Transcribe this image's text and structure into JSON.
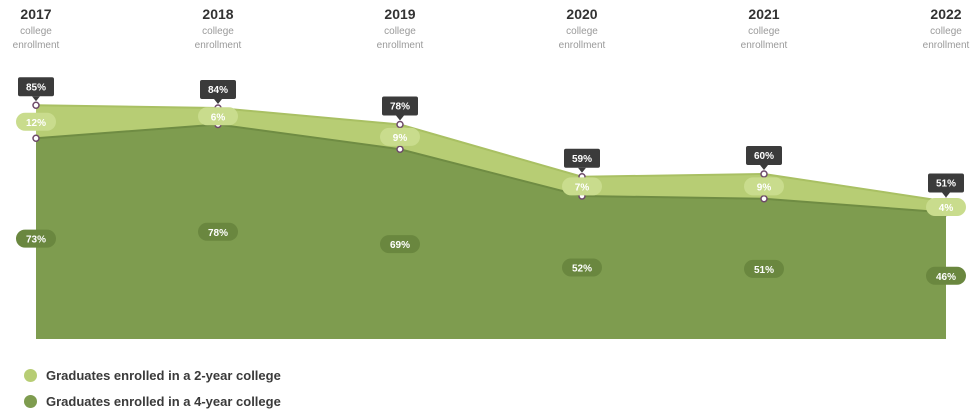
{
  "colors": {
    "two_year": "#b7cd74",
    "four_year": "#7e9c4f",
    "total_tag": "#3b3b3b",
    "marker_stroke": "#6e4a6a"
  },
  "chart_data": {
    "type": "area",
    "stacked": true,
    "x": [
      "2017",
      "2018",
      "2019",
      "2020",
      "2021",
      "2022"
    ],
    "x_sublabel": "college enrollment",
    "ylim": [
      0,
      100
    ],
    "series": [
      {
        "name": "Graduates enrolled in a 4-year college",
        "values": [
          73,
          78,
          69,
          52,
          51,
          46
        ]
      },
      {
        "name": "Graduates enrolled in a 2-year college",
        "values": [
          12,
          6,
          9,
          7,
          9,
          4
        ]
      }
    ],
    "totals": [
      85,
      84,
      78,
      59,
      60,
      51
    ],
    "value_suffix": "%",
    "legend_position": "bottom-left"
  },
  "legend": {
    "two_year": "Graduates enrolled in a 2-year college",
    "four_year": "Graduates enrolled in a 4-year college"
  }
}
